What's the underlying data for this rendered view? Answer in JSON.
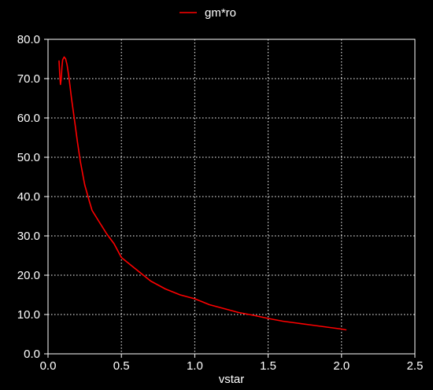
{
  "chart_data": {
    "type": "line",
    "title": "",
    "xlabel": "vstar",
    "ylabel": "",
    "xlim": [
      0.0,
      2.5
    ],
    "ylim": [
      0.0,
      80.0
    ],
    "xticks": [
      0.0,
      0.5,
      1.0,
      1.5,
      2.0,
      2.5
    ],
    "yticks": [
      0.0,
      10.0,
      20.0,
      30.0,
      40.0,
      50.0,
      60.0,
      70.0,
      80.0
    ],
    "xtick_labels": [
      "0.0",
      "0.5",
      "1.0",
      "1.5",
      "2.0",
      "2.5"
    ],
    "ytick_labels": [
      "0.0",
      "10.0",
      "20.0",
      "30.0",
      "40.0",
      "50.0",
      "60.0",
      "70.0",
      "80.0"
    ],
    "grid": true,
    "grid_style": "dotted",
    "legend_position": "top-center",
    "background_color": "#000000",
    "axis_color": "#ffffff",
    "series": [
      {
        "name": "gm*ro",
        "color": "#ff0000",
        "x": [
          0.075,
          0.08,
          0.085,
          0.09,
          0.095,
          0.1,
          0.11,
          0.12,
          0.13,
          0.14,
          0.15,
          0.16,
          0.18,
          0.2,
          0.22,
          0.25,
          0.28,
          0.3,
          0.35,
          0.4,
          0.45,
          0.5,
          0.6,
          0.7,
          0.8,
          0.9,
          1.0,
          1.1,
          1.2,
          1.3,
          1.4,
          1.5,
          1.6,
          1.7,
          1.8,
          1.9,
          2.0,
          2.03
        ],
        "y": [
          74.5,
          71.0,
          68.5,
          70.0,
          73.0,
          74.8,
          75.5,
          75.0,
          73.5,
          71.0,
          68.0,
          65.0,
          59.5,
          54.0,
          49.0,
          43.0,
          39.0,
          36.5,
          33.5,
          30.5,
          28.0,
          24.5,
          21.5,
          18.5,
          16.5,
          15.0,
          14.0,
          12.5,
          11.5,
          10.5,
          9.8,
          9.0,
          8.3,
          7.8,
          7.3,
          6.8,
          6.3,
          6.1
        ]
      }
    ]
  }
}
